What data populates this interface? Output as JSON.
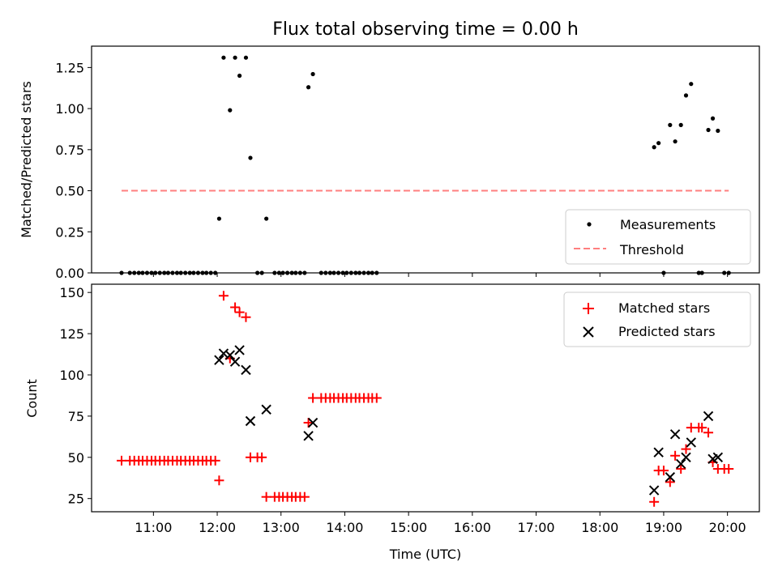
{
  "chart_data": [
    {
      "type": "scatter",
      "title": "Flux total observing time = 0.00 h",
      "ylabel": "Matched/Predicted stars",
      "xlabel": "",
      "x_unit": "hours UTC",
      "xlim": [
        10.03,
        20.5
      ],
      "ylim": [
        0,
        1.38
      ],
      "yticks": [
        "0.00",
        "0.25",
        "0.50",
        "0.75",
        "1.00",
        "1.25"
      ],
      "ytick_values": [
        0,
        0.25,
        0.5,
        0.75,
        1.0,
        1.25
      ],
      "xtick_values": [
        11,
        12,
        13,
        14,
        15,
        16,
        17,
        18,
        19,
        20
      ],
      "legend_position": "lower-right",
      "series": [
        {
          "name": "Measurements",
          "marker": "dot",
          "color": "#000000",
          "x": [
            10.5,
            10.63,
            10.7,
            10.77,
            10.83,
            10.9,
            10.97,
            11.03,
            11.1,
            11.17,
            11.23,
            11.3,
            11.37,
            11.43,
            11.5,
            11.57,
            11.63,
            11.7,
            11.77,
            11.83,
            11.9,
            11.97,
            12.03,
            12.1,
            12.2,
            12.28,
            12.35,
            12.45,
            12.52,
            12.63,
            12.7,
            12.77,
            12.9,
            12.97,
            13.03,
            13.1,
            13.17,
            13.23,
            13.3,
            13.37,
            13.43,
            13.5,
            13.63,
            13.7,
            13.77,
            13.83,
            13.9,
            13.97,
            14.03,
            14.1,
            14.17,
            14.23,
            14.3,
            14.37,
            14.43,
            14.5,
            18.85,
            18.92,
            19.0,
            19.1,
            19.18,
            19.27,
            19.35,
            19.43,
            19.55,
            19.6,
            19.7,
            19.77,
            19.85,
            19.95,
            20.02
          ],
          "y": [
            0,
            0,
            0,
            0,
            0,
            0,
            0,
            0,
            0,
            0,
            0,
            0,
            0,
            0,
            0,
            0,
            0,
            0,
            0,
            0,
            0,
            0,
            0.33,
            1.31,
            0.99,
            1.31,
            1.2,
            1.31,
            0.7,
            0,
            0,
            0.33,
            0,
            0,
            0,
            0,
            0,
            0,
            0,
            0,
            1.13,
            1.21,
            0,
            0,
            0,
            0,
            0,
            0,
            0,
            0,
            0,
            0,
            0,
            0,
            0,
            0,
            0.765,
            0.79,
            0,
            0.9,
            0.8,
            0.9,
            1.08,
            1.15,
            0,
            0,
            0.87,
            0.94,
            0.865,
            0,
            0
          ]
        },
        {
          "name": "Threshold",
          "marker": "dashed-line",
          "color": "#ff7f7f",
          "x": [
            10.5,
            20.02
          ],
          "y": [
            0.5,
            0.5
          ]
        }
      ]
    },
    {
      "type": "scatter",
      "title": "",
      "ylabel": "Count",
      "xlabel": "Time (UTC)",
      "x_unit": "hours UTC",
      "xlim": [
        10.03,
        20.5
      ],
      "ylim": [
        17,
        155
      ],
      "yticks": [
        "25",
        "50",
        "75",
        "100",
        "125",
        "150"
      ],
      "ytick_values": [
        25,
        50,
        75,
        100,
        125,
        150
      ],
      "xticks": [
        "11:00",
        "12:00",
        "13:00",
        "14:00",
        "15:00",
        "16:00",
        "17:00",
        "18:00",
        "19:00",
        "20:00"
      ],
      "xtick_values": [
        11,
        12,
        13,
        14,
        15,
        16,
        17,
        18,
        19,
        20
      ],
      "legend_position": "upper-right",
      "series": [
        {
          "name": "Matched stars",
          "marker": "plus",
          "color": "#ff0000",
          "x": [
            10.5,
            10.63,
            10.7,
            10.77,
            10.83,
            10.9,
            10.97,
            11.03,
            11.1,
            11.17,
            11.23,
            11.3,
            11.37,
            11.43,
            11.5,
            11.57,
            11.63,
            11.7,
            11.77,
            11.83,
            11.9,
            11.97,
            12.03,
            12.1,
            12.2,
            12.28,
            12.35,
            12.45,
            12.52,
            12.63,
            12.7,
            12.77,
            12.9,
            12.97,
            13.03,
            13.1,
            13.17,
            13.23,
            13.3,
            13.37,
            13.43,
            13.5,
            13.63,
            13.7,
            13.77,
            13.83,
            13.9,
            13.97,
            14.03,
            14.1,
            14.17,
            14.23,
            14.3,
            14.37,
            14.43,
            14.5,
            18.85,
            18.92,
            19.0,
            19.1,
            19.18,
            19.27,
            19.35,
            19.43,
            19.55,
            19.6,
            19.7,
            19.77,
            19.85,
            19.95,
            20.02
          ],
          "y": [
            48,
            48,
            48,
            48,
            48,
            48,
            48,
            48,
            48,
            48,
            48,
            48,
            48,
            48,
            48,
            48,
            48,
            48,
            48,
            48,
            48,
            48,
            36,
            148,
            110,
            141,
            138,
            135,
            50,
            50,
            50,
            26,
            26,
            26,
            26,
            26,
            26,
            26,
            26,
            26,
            71,
            86,
            86,
            86,
            86,
            86,
            86,
            86,
            86,
            86,
            86,
            86,
            86,
            86,
            86,
            86,
            23,
            42,
            42,
            35,
            51,
            43,
            55,
            68,
            68,
            68,
            65,
            47,
            43,
            43,
            43
          ]
        },
        {
          "name": "Predicted stars",
          "marker": "x",
          "color": "#000000",
          "x": [
            12.03,
            12.1,
            12.2,
            12.28,
            12.35,
            12.45,
            12.52,
            12.77,
            13.43,
            13.5,
            18.85,
            18.92,
            19.1,
            19.18,
            19.27,
            19.35,
            19.43,
            19.7,
            19.77,
            19.85
          ],
          "y": [
            109,
            113,
            112,
            108,
            115,
            103,
            72,
            79,
            63,
            71,
            30,
            53,
            38,
            64,
            46,
            50,
            59,
            75,
            49,
            50
          ]
        }
      ]
    }
  ]
}
